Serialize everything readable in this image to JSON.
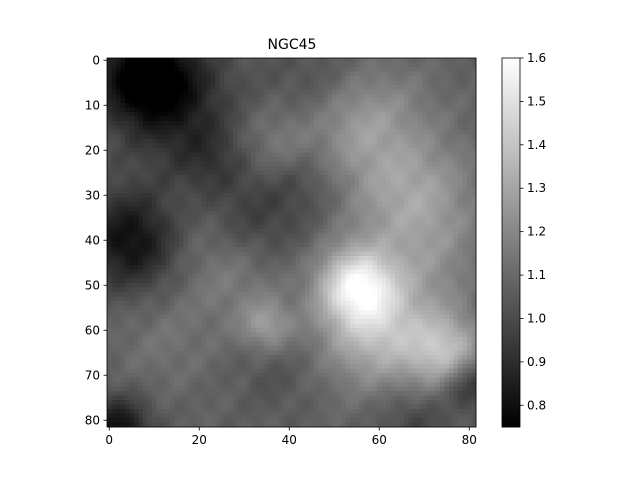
{
  "chart_data": {
    "type": "heatmap",
    "title": "NGC45",
    "xlabel": "",
    "ylabel": "",
    "colormap": "gray",
    "grid": false,
    "extent": [
      -0.5,
      81.5,
      81.5,
      -0.5
    ],
    "x_ticks": [
      "0",
      "20",
      "40",
      "60",
      "80"
    ],
    "y_ticks": [
      "0",
      "10",
      "20",
      "30",
      "40",
      "50",
      "60",
      "70",
      "80"
    ],
    "colorbar": {
      "range": [
        0.75,
        1.6
      ],
      "ticks": [
        "0.8",
        "0.9",
        "1.0",
        "1.1",
        "1.2",
        "1.3",
        "1.4",
        "1.5",
        "1.6"
      ]
    },
    "grid_size": [
      82,
      82
    ],
    "base_value": 1.07,
    "features": [
      {
        "x": 8,
        "y": 3,
        "r": 8,
        "amp": -0.32
      },
      {
        "x": 5,
        "y": 40,
        "r": 8,
        "amp": -0.28
      },
      {
        "x": 2,
        "y": 82,
        "r": 5,
        "amp": -0.28
      },
      {
        "x": 15,
        "y": 10,
        "r": 10,
        "amp": -0.15
      },
      {
        "x": 22,
        "y": 22,
        "r": 6,
        "amp": -0.1
      },
      {
        "x": 32,
        "y": 36,
        "r": 8,
        "amp": -0.12
      },
      {
        "x": 43,
        "y": 27,
        "r": 6,
        "amp": -0.07
      },
      {
        "x": 45,
        "y": 5,
        "r": 8,
        "amp": -0.06
      },
      {
        "x": 55,
        "y": 50,
        "r": 6,
        "amp": 0.4
      },
      {
        "x": 60,
        "y": 60,
        "r": 9,
        "amp": 0.3
      },
      {
        "x": 67,
        "y": 30,
        "r": 10,
        "amp": 0.22
      },
      {
        "x": 55,
        "y": 15,
        "r": 8,
        "amp": 0.15
      },
      {
        "x": 75,
        "y": 65,
        "r": 6,
        "amp": 0.28
      },
      {
        "x": 35,
        "y": 59,
        "r": 4,
        "amp": 0.18
      },
      {
        "x": 28,
        "y": 48,
        "r": 8,
        "amp": 0.1
      },
      {
        "x": 37,
        "y": 18,
        "r": 6,
        "amp": 0.1
      },
      {
        "x": 18,
        "y": 38,
        "r": 7,
        "amp": 0.05
      },
      {
        "x": 80,
        "y": 72,
        "r": 4,
        "amp": -0.2
      },
      {
        "x": 68,
        "y": 80,
        "r": 6,
        "amp": -0.1
      },
      {
        "x": 37,
        "y": 70,
        "r": 6,
        "amp": -0.05
      },
      {
        "x": 12,
        "y": 62,
        "r": 8,
        "amp": 0.06
      },
      {
        "x": 72,
        "y": 45,
        "r": 8,
        "amp": 0.08
      },
      {
        "x": 63,
        "y": 8,
        "r": 8,
        "amp": 0.05
      }
    ]
  }
}
